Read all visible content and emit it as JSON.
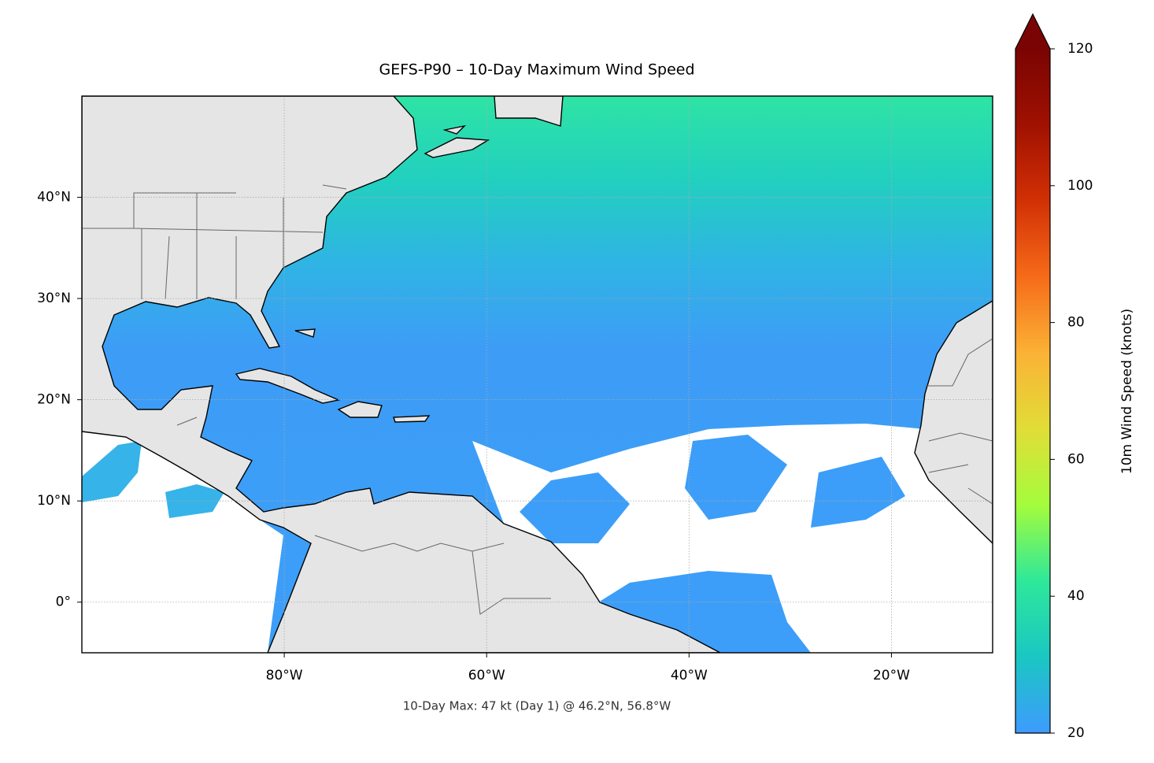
{
  "chart_data": {
    "type": "map",
    "title": "GEFS-P90 – 10-Day Maximum Wind Speed",
    "annotation": "10-Day Max: 47 kt (Day 1) @ 46.2°N, 56.8°W",
    "xlim": [
      -100,
      -10
    ],
    "ylim": [
      -5,
      50
    ],
    "xticks": [
      {
        "value": -80,
        "label": "80°W"
      },
      {
        "value": -60,
        "label": "60°W"
      },
      {
        "value": -40,
        "label": "40°W"
      },
      {
        "value": -20,
        "label": "20°W"
      }
    ],
    "yticks": [
      {
        "value": 0,
        "label": "0°"
      },
      {
        "value": 10,
        "label": "10°N"
      },
      {
        "value": 20,
        "label": "20°N"
      },
      {
        "value": 30,
        "label": "30°N"
      },
      {
        "value": 40,
        "label": "40°N"
      }
    ],
    "grid": true,
    "colorbar": {
      "label": "10m Wind Speed (knots)",
      "lim": [
        20,
        120
      ],
      "ticks": [
        20,
        40,
        60,
        80,
        100,
        120
      ],
      "extend": "max",
      "colors": [
        "#3e9bfe",
        "#1ac7c2",
        "#2ee89a",
        "#a4fc3c",
        "#e1dd37",
        "#fbb236",
        "#f66b19",
        "#d23005",
        "#a01101",
        "#7a0403"
      ]
    }
  }
}
